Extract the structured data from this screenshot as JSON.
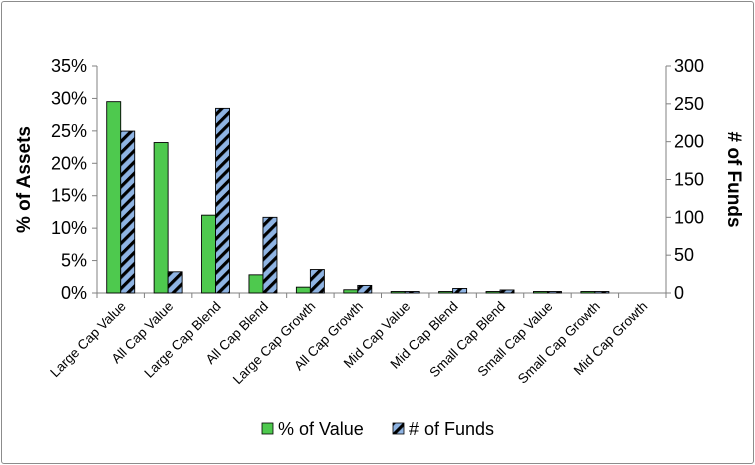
{
  "chart_data": {
    "type": "bar",
    "categories": [
      "Large Cap Value",
      "All Cap Value",
      "Large Cap Blend",
      "All Cap Blend",
      "Large Cap Growth",
      "All Cap Growth",
      "Mid Cap Value",
      "Mid Cap Blend",
      "Small Cap Blend",
      "Small Cap Value",
      "Small Cap Growth",
      "Mid Cap Growth"
    ],
    "series": [
      {
        "name": "% of Value",
        "axis": "left",
        "color": "#4ec94e",
        "values": [
          29.5,
          23.2,
          12.0,
          2.8,
          0.9,
          0.5,
          0.2,
          0.2,
          0.2,
          0.1,
          0.1,
          0.0
        ]
      },
      {
        "name": "# of Funds",
        "axis": "right",
        "color": "#8fb4e3",
        "pattern": "black-diagonal-stripes",
        "values": [
          214,
          28,
          244,
          100,
          31,
          10,
          1,
          6,
          4,
          1,
          1,
          0
        ]
      }
    ],
    "ylabel": "% of Assets",
    "y2label": "# of Funds",
    "ylim": [
      0,
      35
    ],
    "y2lim": [
      0,
      300
    ],
    "yticks": [
      "0%",
      "5%",
      "10%",
      "15%",
      "20%",
      "25%",
      "30%",
      "35%"
    ],
    "y2ticks": [
      "0",
      "50",
      "100",
      "150",
      "200",
      "250",
      "300"
    ],
    "legend_position": "bottom",
    "grid": false
  }
}
